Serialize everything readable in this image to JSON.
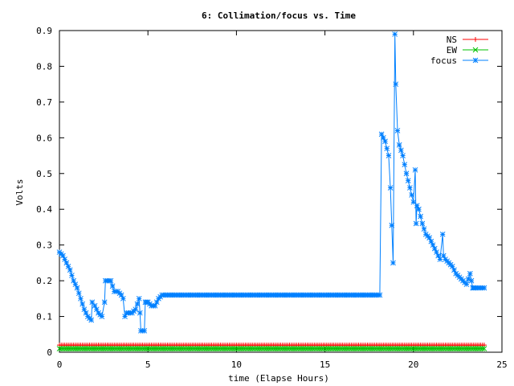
{
  "chart_data": {
    "type": "line",
    "title": "6: Collimation/focus vs. Time",
    "xlabel": "time (Elapse Hours)",
    "ylabel": "Volts",
    "xlim": [
      0,
      25
    ],
    "ylim": [
      0,
      0.9
    ],
    "x_ticks": [
      "0",
      "5",
      "10",
      "15",
      "20",
      "25"
    ],
    "y_ticks": [
      "0",
      "0.1",
      "0.2",
      "0.3",
      "0.4",
      "0.5",
      "0.6",
      "0.7",
      "0.8",
      "0.9"
    ],
    "grid": false,
    "legend_position": "top-right",
    "series": [
      {
        "name": "NS",
        "color": "#ff0000",
        "marker": "plus",
        "x": [
          0,
          24
        ],
        "y": [
          0.02,
          0.02
        ]
      },
      {
        "name": "EW",
        "color": "#00c000",
        "marker": "cross",
        "x": [
          0,
          24
        ],
        "y": [
          0.01,
          0.01
        ]
      },
      {
        "name": "focus",
        "color": "#0080ff",
        "marker": "star",
        "x": [
          0,
          0.2,
          0.4,
          0.6,
          0.8,
          1.0,
          1.2,
          1.4,
          1.6,
          1.8,
          1.85,
          2.0,
          2.2,
          2.4,
          2.55,
          2.6,
          2.9,
          3.1,
          3.3,
          3.5,
          3.6,
          3.7,
          3.8,
          4.1,
          4.3,
          4.5,
          4.55,
          4.6,
          4.8,
          4.85,
          5.0,
          5.2,
          5.4,
          5.6,
          5.8,
          6.0,
          10,
          14,
          17,
          18.1,
          18.2,
          18.4,
          18.6,
          18.7,
          18.85,
          18.95,
          19.0,
          19.1,
          19.2,
          19.4,
          19.6,
          19.8,
          20.0,
          20.1,
          20.15,
          20.2,
          20.3,
          20.5,
          20.7,
          20.9,
          21.1,
          21.3,
          21.5,
          21.65,
          21.7,
          21.8,
          22.0,
          22.2,
          22.4,
          22.6,
          22.8,
          23.0,
          23.2,
          23.35,
          23.4,
          23.6,
          23.8,
          24.0
        ],
        "y": [
          0.28,
          0.27,
          0.25,
          0.23,
          0.2,
          0.18,
          0.15,
          0.12,
          0.1,
          0.09,
          0.14,
          0.13,
          0.11,
          0.1,
          0.14,
          0.2,
          0.2,
          0.17,
          0.17,
          0.16,
          0.15,
          0.1,
          0.11,
          0.11,
          0.12,
          0.15,
          0.11,
          0.06,
          0.06,
          0.14,
          0.14,
          0.13,
          0.13,
          0.15,
          0.16,
          0.16,
          0.16,
          0.16,
          0.16,
          0.16,
          0.61,
          0.59,
          0.55,
          0.46,
          0.25,
          0.89,
          0.75,
          0.62,
          0.58,
          0.55,
          0.5,
          0.46,
          0.42,
          0.51,
          0.36,
          0.41,
          0.4,
          0.36,
          0.33,
          0.32,
          0.3,
          0.28,
          0.26,
          0.33,
          0.27,
          0.26,
          0.25,
          0.24,
          0.22,
          0.21,
          0.2,
          0.19,
          0.22,
          0.18,
          0.18,
          0.18,
          0.18,
          0.18
        ]
      }
    ]
  }
}
